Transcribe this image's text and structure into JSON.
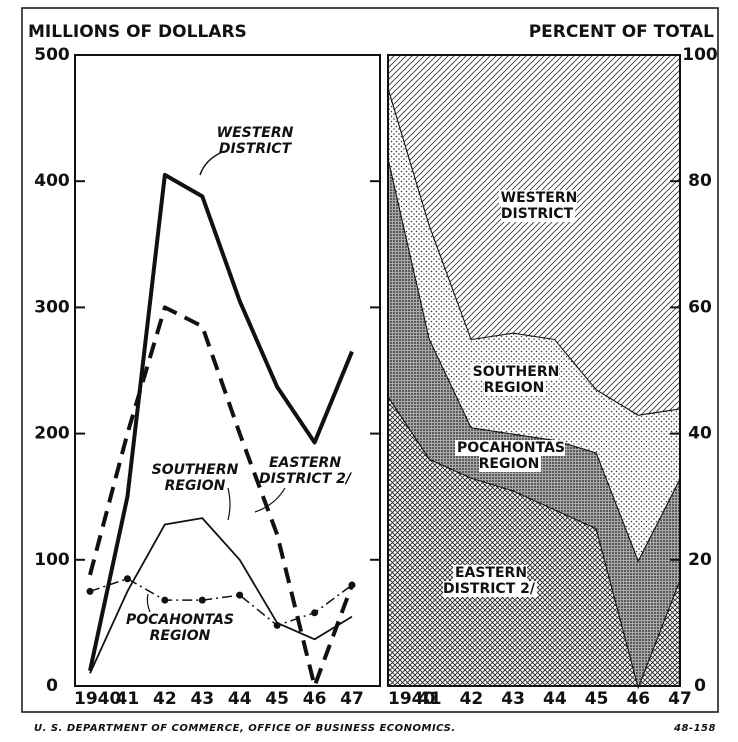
{
  "chart_data": [
    {
      "type": "line",
      "title": "MILLIONS OF DOLLARS",
      "categories": [
        "1940",
        "41",
        "42",
        "43",
        "44",
        "45",
        "46",
        "47"
      ],
      "ylim": [
        0,
        500
      ],
      "yticks": [
        0,
        100,
        200,
        300,
        400,
        500
      ],
      "series": [
        {
          "name": "WESTERN DISTRICT",
          "color": "#111111",
          "style": "thick",
          "values": [
            12,
            150,
            405,
            388,
            305,
            237,
            193,
            265
          ]
        },
        {
          "name": "EASTERN DISTRICT 2/",
          "color": "#111111",
          "style": "dashed",
          "values": [
            88,
            200,
            300,
            285,
            200,
            120,
            0,
            80
          ]
        },
        {
          "name": "SOUTHERN REGION",
          "color": "#111111",
          "style": "thin",
          "values": [
            10,
            75,
            128,
            133,
            100,
            50,
            37,
            55
          ]
        },
        {
          "name": "POCAHONTAS REGION",
          "color": "#111111",
          "style": "dot-dash",
          "values": [
            75,
            85,
            68,
            68,
            72,
            48,
            58,
            80
          ]
        }
      ]
    },
    {
      "type": "stacked-area",
      "title": "PERCENT OF TOTAL",
      "categories": [
        "1940",
        "41",
        "42",
        "43",
        "44",
        "45",
        "46",
        "47"
      ],
      "ylim": [
        0,
        100
      ],
      "yticks": [
        0,
        20,
        40,
        60,
        80,
        100
      ],
      "series": [
        {
          "name": "EASTERN DISTRICT 2/",
          "color": "#111111",
          "pattern": "crosshatch",
          "values": [
            46,
            36,
            33,
            31,
            28,
            25,
            0,
            17
          ]
        },
        {
          "name": "POCAHONTAS REGION",
          "color": "#111111",
          "pattern": "dense-dots",
          "values": [
            38,
            19,
            8,
            9,
            11,
            12,
            20,
            16
          ]
        },
        {
          "name": "SOUTHERN REGION",
          "color": "#111111",
          "pattern": "light-dots",
          "values": [
            11,
            18,
            14,
            16,
            16,
            10,
            23,
            11
          ]
        },
        {
          "name": "WESTERN DISTRICT",
          "color": "#111111",
          "pattern": "diagonal",
          "values": [
            5,
            27,
            45,
            44,
            45,
            53,
            57,
            56
          ]
        }
      ]
    }
  ],
  "footer": {
    "source": "U. S. DEPARTMENT OF COMMERCE, OFFICE OF BUSINESS ECONOMICS.",
    "code": "48-158"
  }
}
